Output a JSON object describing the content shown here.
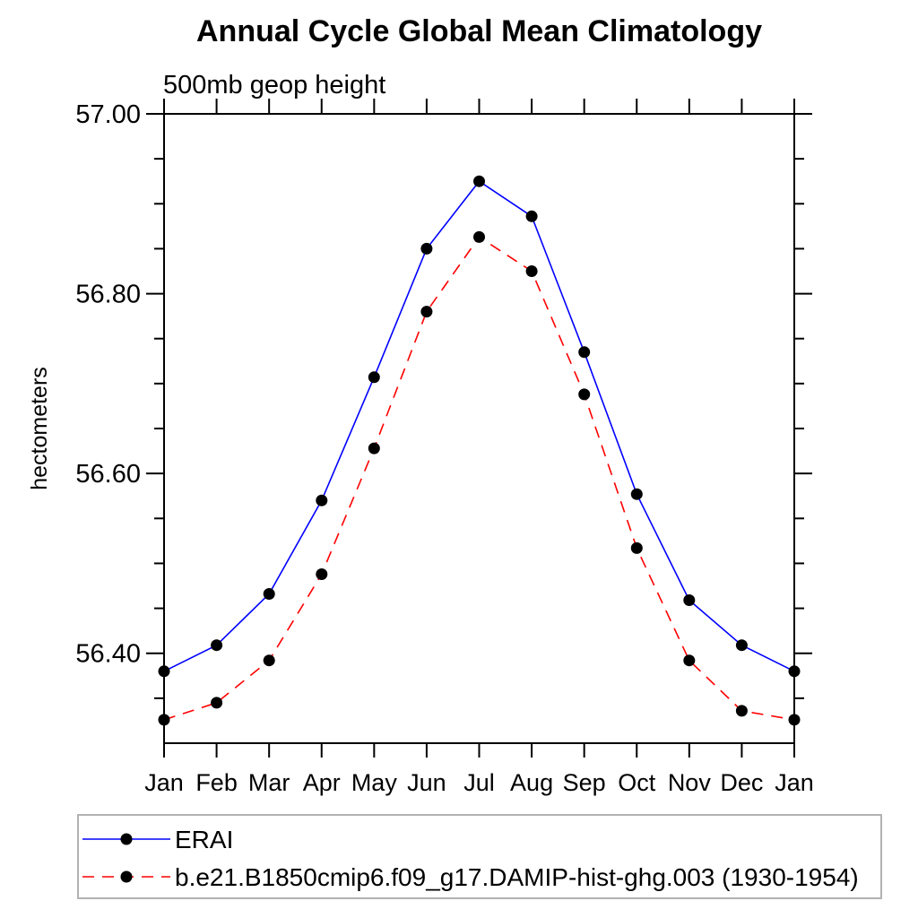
{
  "page": {
    "background": "#ffffff",
    "frame_color": "#000000",
    "legend_border_color": "#b2b2b2"
  },
  "chart_data": {
    "type": "line",
    "title": "Annual Cycle Global Mean Climatology",
    "subtitle": "500mb geop height",
    "ylabel": "hectometers",
    "xlabel": "",
    "categories": [
      "Jan",
      "Feb",
      "Mar",
      "Apr",
      "May",
      "Jun",
      "Jul",
      "Aug",
      "Sep",
      "Oct",
      "Nov",
      "Dec",
      "Jan"
    ],
    "ylim": [
      56.3,
      57.0
    ],
    "y_major_ticks": {
      "values": [
        57.0,
        56.8,
        56.6,
        56.4
      ],
      "labels": [
        "57.00",
        "56.80",
        "56.60",
        "56.40"
      ]
    },
    "y_minor_tick_step": 0.05,
    "grid": false,
    "legend_position": "bottom-left-box",
    "series": [
      {
        "name": "ERAI",
        "color": "#0000ff",
        "line_style": "solid",
        "marker": "filled-circle",
        "marker_color": "#000000",
        "values": [
          56.38,
          56.409,
          56.466,
          56.57,
          56.707,
          56.85,
          56.925,
          56.886,
          56.735,
          56.577,
          56.459,
          56.409,
          56.38
        ]
      },
      {
        "name": "b.e21.B1850cmip6.f09_g17.DAMIP-hist-ghg.003 (1930-1954)",
        "color": "#ff0000",
        "line_style": "dashed",
        "marker": "filled-circle",
        "marker_color": "#000000",
        "values": [
          56.326,
          56.345,
          56.392,
          56.488,
          56.628,
          56.78,
          56.863,
          56.825,
          56.688,
          56.517,
          56.392,
          56.336,
          56.326
        ]
      }
    ]
  }
}
